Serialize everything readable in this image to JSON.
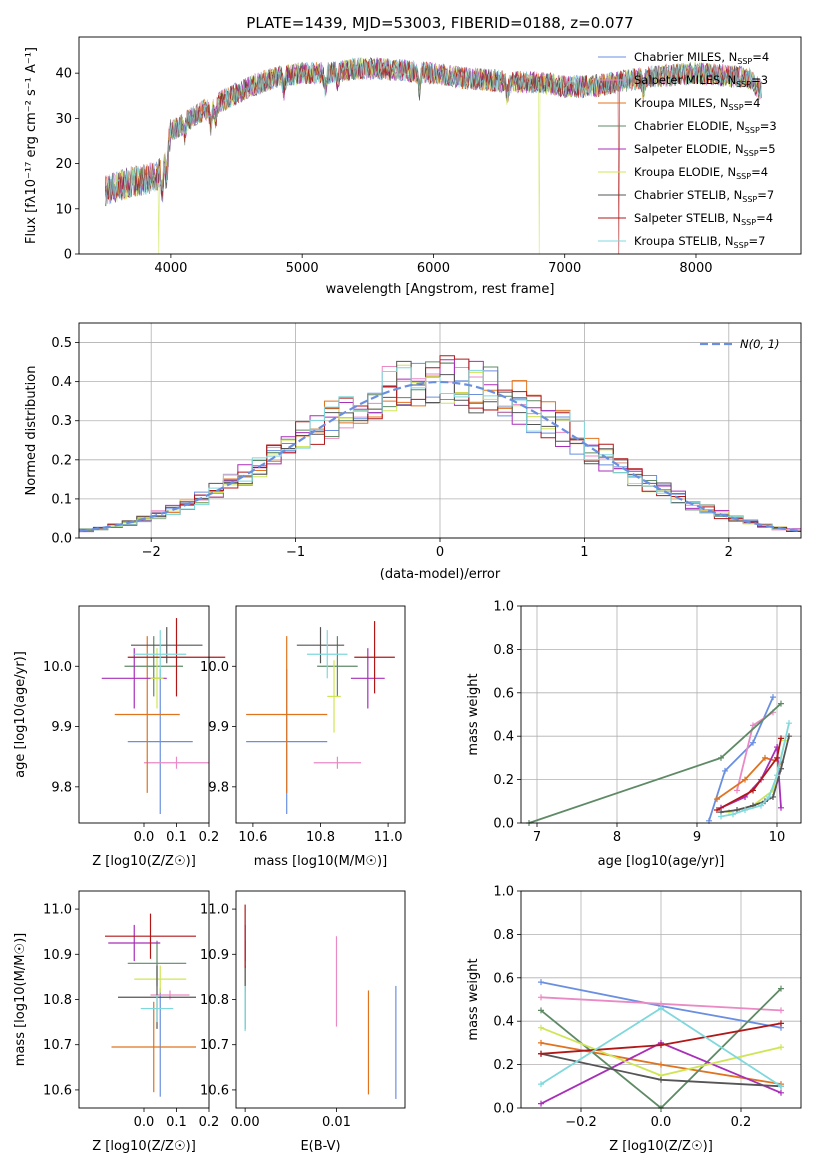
{
  "figure_title": "PLATE=1439, MJD=53003, FIBERID=0188, z=0.077",
  "colors": {
    "Chabrier MILES": "#6a8fe0",
    "Salpeter MILES": "#e98ac4",
    "Kroupa MILES": "#e0731e",
    "Chabrier ELODIE": "#5f8a66",
    "Salpeter ELODIE": "#a82fb8",
    "Kroupa ELODIE": "#cfe556",
    "Chabrier STELIB": "#555555",
    "Salpeter STELIB": "#b01818",
    "Kroupa STELIB": "#7fd8dc"
  },
  "chart_data": [
    {
      "id": "spectrum",
      "type": "line",
      "title": "PLATE=1439, MJD=53003, FIBERID=0188, z=0.077",
      "xlabel": "wavelength [Angstrom, rest frame]",
      "ylabel": "Flux [fλ10⁻¹⁷ erg cm⁻² s⁻¹ A⁻¹]",
      "xlim": [
        3300,
        8800
      ],
      "ylim": [
        0,
        48
      ],
      "xticks": [
        4000,
        5000,
        6000,
        7000,
        8000
      ],
      "yticks": [
        0,
        10,
        20,
        30,
        40
      ],
      "grid": false,
      "legend": "top-right",
      "series": [
        {
          "name": "Chabrier MILES, N_SSP=4"
        },
        {
          "name": "Salpeter MILES, N_SSP=3"
        },
        {
          "name": "Kroupa MILES, N_SSP=4"
        },
        {
          "name": "Chabrier ELODIE, N_SSP=3"
        },
        {
          "name": "Salpeter ELODIE, N_SSP=5"
        },
        {
          "name": "Kroupa ELODIE, N_SSP=4"
        },
        {
          "name": "Chabrier STELIB, N_SSP=7"
        },
        {
          "name": "Salpeter STELIB, N_SSP=4"
        },
        {
          "name": "Kroupa STELIB, N_SSP=7"
        }
      ],
      "continuum": {
        "x": [
          3500,
          3700,
          3900,
          3950,
          4000,
          4200,
          4400,
          4600,
          4800,
          5000,
          5200,
          5400,
          5600,
          5800,
          6000,
          6200,
          6400,
          6600,
          6800,
          7000,
          7200,
          7400,
          7600,
          8000,
          8400,
          8500
        ],
        "y": [
          14,
          16,
          17,
          21,
          27,
          31,
          34,
          37,
          39,
          40,
          40,
          41,
          41,
          40.5,
          40,
          39,
          38.5,
          38,
          38,
          37,
          37,
          38,
          39,
          40,
          39,
          36
        ]
      },
      "drops": [
        {
          "series": "Kroupa ELODIE",
          "x": 3910
        },
        {
          "series": "Kroupa ELODIE",
          "x": 6805
        },
        {
          "series": "Salpeter STELIB",
          "x": 7410
        }
      ]
    },
    {
      "id": "residuals",
      "type": "line",
      "xlabel": "(data-model)/error",
      "ylabel": "Normed distribution",
      "xlim": [
        -2.5,
        2.5
      ],
      "ylim": [
        0,
        0.55
      ],
      "xticks": [
        -2,
        -1,
        0,
        1,
        2
      ],
      "yticks": [
        0.0,
        0.1,
        0.2,
        0.3,
        0.4,
        0.5
      ],
      "grid": true,
      "legend": "top-right",
      "reference_label": "N(0, 1)",
      "reference_color": "#6a8fe0"
    },
    {
      "id": "age_vs_Z",
      "type": "scatter",
      "xlabel": "Z [log10(Z/Z☉)]",
      "ylabel": "age  [log10(age/yr)]",
      "xlim": [
        -0.2,
        0.2
      ],
      "ylim": [
        9.74,
        10.1
      ],
      "xticks": [
        0.0,
        0.1,
        0.2
      ],
      "yticks": [
        9.8,
        9.9,
        10.0
      ],
      "points": [
        {
          "series": "Chabrier MILES",
          "x": 0.05,
          "y": 9.875,
          "xerr": 0.1,
          "yerr": 0.12
        },
        {
          "series": "Salpeter MILES",
          "x": 0.1,
          "y": 9.84,
          "xerr": 0.1,
          "yerr": 0.01
        },
        {
          "series": "Kroupa MILES",
          "x": 0.01,
          "y": 9.92,
          "xerr": 0.1,
          "yerr": 0.13
        },
        {
          "series": "Chabrier ELODIE",
          "x": 0.03,
          "y": 10.0,
          "xerr": 0.09,
          "yerr": 0.05
        },
        {
          "series": "Salpeter ELODIE",
          "x": -0.03,
          "y": 9.98,
          "xerr": 0.1,
          "yerr": 0.05
        },
        {
          "series": "Kroupa ELODIE",
          "x": 0.04,
          "y": 9.98,
          "xerr": 0.02,
          "yerr": 0.05
        },
        {
          "series": "Chabrier STELIB",
          "x": 0.07,
          "y": 10.035,
          "xerr": 0.11,
          "yerr": 0.03
        },
        {
          "series": "Salpeter STELIB",
          "x": 0.1,
          "y": 10.015,
          "xerr": 0.15,
          "yerr": 0.065
        },
        {
          "series": "Kroupa STELIB",
          "x": 0.05,
          "y": 10.02,
          "xerr": 0.08,
          "yerr": 0.04
        }
      ]
    },
    {
      "id": "age_vs_mass",
      "type": "scatter",
      "xlabel": "mass [log10(M/M☉)]",
      "ylabel": "",
      "xlim": [
        10.55,
        11.05
      ],
      "ylim": [
        9.74,
        10.1
      ],
      "xticks": [
        10.6,
        10.8,
        11.0
      ],
      "yticks": [
        9.8,
        9.9,
        10.0
      ],
      "points": [
        {
          "series": "Chabrier MILES",
          "x": 10.7,
          "y": 9.875,
          "xerr": 0.12,
          "yerr": 0.12
        },
        {
          "series": "Salpeter MILES",
          "x": 10.85,
          "y": 9.84,
          "xerr": 0.07,
          "yerr": 0.01
        },
        {
          "series": "Kroupa MILES",
          "x": 10.7,
          "y": 9.92,
          "xerr": 0.12,
          "yerr": 0.13
        },
        {
          "series": "Chabrier ELODIE",
          "x": 10.85,
          "y": 10.0,
          "xerr": 0.06,
          "yerr": 0.05
        },
        {
          "series": "Salpeter ELODIE",
          "x": 10.94,
          "y": 9.98,
          "xerr": 0.05,
          "yerr": 0.05
        },
        {
          "series": "Kroupa ELODIE",
          "x": 10.84,
          "y": 9.95,
          "xerr": 0.02,
          "yerr": 0.06
        },
        {
          "series": "Chabrier STELIB",
          "x": 10.8,
          "y": 10.035,
          "xerr": 0.07,
          "yerr": 0.03
        },
        {
          "series": "Salpeter STELIB",
          "x": 10.96,
          "y": 10.015,
          "xerr": 0.06,
          "yerr": 0.06
        },
        {
          "series": "Kroupa STELIB",
          "x": 10.82,
          "y": 10.02,
          "xerr": 0.06,
          "yerr": 0.04
        }
      ]
    },
    {
      "id": "weight_vs_age",
      "type": "line",
      "xlabel": "age  [log10(age/yr)]",
      "ylabel": "mass weight",
      "xlim": [
        6.8,
        10.3
      ],
      "ylim": [
        0,
        1.0
      ],
      "xticks": [
        7,
        8,
        9,
        10
      ],
      "yticks": [
        0.0,
        0.2,
        0.4,
        0.6,
        0.8,
        1.0
      ],
      "grid": true,
      "series": [
        {
          "name": "Chabrier MILES",
          "x": [
            9.15,
            9.35,
            9.7,
            9.95
          ],
          "y": [
            0.01,
            0.24,
            0.37,
            0.58
          ]
        },
        {
          "name": "Salpeter MILES",
          "x": [
            9.5,
            9.7,
            9.95
          ],
          "y": [
            0.15,
            0.45,
            0.51
          ]
        },
        {
          "name": "Kroupa MILES",
          "x": [
            9.25,
            9.6,
            9.85,
            10.05
          ],
          "y": [
            0.11,
            0.2,
            0.3,
            0.28
          ]
        },
        {
          "name": "Chabrier ELODIE",
          "x": [
            6.9,
            9.3,
            10.05
          ],
          "y": [
            0.0,
            0.3,
            0.55
          ]
        },
        {
          "name": "Salpeter ELODIE",
          "x": [
            9.3,
            9.6,
            9.8,
            10.0,
            10.05
          ],
          "y": [
            0.07,
            0.12,
            0.2,
            0.35,
            0.07
          ]
        },
        {
          "name": "Kroupa ELODIE",
          "x": [
            9.4,
            9.7,
            9.95,
            10.1
          ],
          "y": [
            0.05,
            0.08,
            0.15,
            0.38
          ]
        },
        {
          "name": "Chabrier STELIB",
          "x": [
            9.3,
            9.5,
            9.7,
            9.85,
            9.95,
            10.05,
            10.15
          ],
          "y": [
            0.05,
            0.06,
            0.08,
            0.1,
            0.12,
            0.25,
            0.4
          ]
        },
        {
          "name": "Salpeter STELIB",
          "x": [
            9.25,
            9.7,
            10.0,
            10.05
          ],
          "y": [
            0.06,
            0.15,
            0.3,
            0.39
          ]
        },
        {
          "name": "Kroupa STELIB",
          "x": [
            9.3,
            9.45,
            9.6,
            9.8,
            9.9,
            10.0,
            10.15
          ],
          "y": [
            0.03,
            0.04,
            0.06,
            0.08,
            0.12,
            0.22,
            0.46
          ]
        }
      ]
    },
    {
      "id": "mass_vs_Z",
      "type": "scatter",
      "xlabel": "Z [log10(Z/Z☉)]",
      "ylabel": "mass [log10(M/M☉)]",
      "xlim": [
        -0.2,
        0.2
      ],
      "ylim": [
        10.56,
        11.04
      ],
      "xticks": [
        0.0,
        0.1,
        0.2
      ],
      "yticks": [
        10.6,
        10.7,
        10.8,
        10.9,
        11.0
      ],
      "points": [
        {
          "series": "Chabrier MILES",
          "x": 0.05,
          "y": 10.705,
          "xerr": 0.0,
          "yerr": 0.12
        },
        {
          "series": "Salpeter MILES",
          "x": 0.08,
          "y": 10.81,
          "xerr": 0.06,
          "yerr": 0.01
        },
        {
          "series": "Kroupa MILES",
          "x": 0.03,
          "y": 10.695,
          "xerr": 0.13,
          "yerr": 0.1
        },
        {
          "series": "Chabrier ELODIE",
          "x": 0.04,
          "y": 10.88,
          "xerr": 0.09,
          "yerr": 0.05
        },
        {
          "series": "Salpeter ELODIE",
          "x": -0.03,
          "y": 10.925,
          "xerr": 0.08,
          "yerr": 0.04
        },
        {
          "series": "Kroupa ELODIE",
          "x": 0.05,
          "y": 10.845,
          "xerr": 0.08,
          "yerr": 0.03
        },
        {
          "series": "Chabrier STELIB",
          "x": 0.04,
          "y": 10.805,
          "xerr": 0.12,
          "yerr": 0.07
        },
        {
          "series": "Salpeter STELIB",
          "x": 0.02,
          "y": 10.94,
          "xerr": 0.14,
          "yerr": 0.05
        },
        {
          "series": "Kroupa STELIB",
          "x": 0.04,
          "y": 10.78,
          "xerr": 0.05,
          "yerr": 0.03
        }
      ]
    },
    {
      "id": "mass_vs_ebv",
      "type": "scatter",
      "xlabel": "E(B-V)",
      "ylabel": "",
      "xlim": [
        -0.001,
        0.0175
      ],
      "ylim": [
        10.56,
        11.04
      ],
      "xticks": [
        0.0,
        0.01
      ],
      "xticklabels": [
        "0.00",
        "0.01"
      ],
      "yticks": [
        10.6,
        10.7,
        10.8,
        10.9,
        11.0
      ],
      "points": [
        {
          "series": "Chabrier MILES",
          "x": 0.0165,
          "y": 10.705,
          "yerr": 0.125
        },
        {
          "series": "Salpeter MILES",
          "x": 0.01,
          "y": 10.84,
          "yerr": 0.1
        },
        {
          "series": "Kroupa MILES",
          "x": 0.0135,
          "y": 10.705,
          "yerr": 0.115
        },
        {
          "series": "Chabrier ELODIE",
          "x": 0.0,
          "y": 10.88,
          "yerr": 0.05
        },
        {
          "series": "Salpeter ELODIE",
          "x": 0.0,
          "y": 10.925,
          "yerr": 0.04
        },
        {
          "series": "Kroupa ELODIE",
          "x": 0.0,
          "y": 10.845,
          "yerr": 0.03
        },
        {
          "series": "Chabrier STELIB",
          "x": 0.0,
          "y": 10.805,
          "yerr": 0.07
        },
        {
          "series": "Salpeter STELIB",
          "x": 0.0,
          "y": 10.94,
          "yerr": 0.07
        },
        {
          "series": "Kroupa STELIB",
          "x": 0.0,
          "y": 10.78,
          "yerr": 0.05
        }
      ]
    },
    {
      "id": "weight_vs_Z",
      "type": "line",
      "xlabel": "Z [log10(Z/Z☉)]",
      "ylabel": "mass weight",
      "xlim": [
        -0.35,
        0.35
      ],
      "ylim": [
        0,
        1.0
      ],
      "xticks": [
        -0.2,
        0.0,
        0.2
      ],
      "xticklabels": [
        "−0.2",
        "0.0",
        "0.2"
      ],
      "yticks": [
        0.0,
        0.2,
        0.4,
        0.6,
        0.8,
        1.0
      ],
      "grid": true,
      "series": [
        {
          "name": "Chabrier MILES",
          "x": [
            -0.3,
            0.0,
            0.3
          ],
          "y": [
            0.58,
            0.47,
            0.37
          ]
        },
        {
          "name": "Salpeter MILES",
          "x": [
            -0.3,
            0.0,
            0.3
          ],
          "y": [
            0.51,
            0.48,
            0.45
          ]
        },
        {
          "name": "Kroupa MILES",
          "x": [
            -0.3,
            0.0,
            0.3
          ],
          "y": [
            0.3,
            0.2,
            0.11
          ]
        },
        {
          "name": "Chabrier ELODIE",
          "x": [
            -0.3,
            0.0,
            0.3
          ],
          "y": [
            0.45,
            0.0,
            0.55
          ]
        },
        {
          "name": "Salpeter ELODIE",
          "x": [
            -0.3,
            0.0,
            0.3
          ],
          "y": [
            0.02,
            0.3,
            0.07
          ]
        },
        {
          "name": "Kroupa ELODIE",
          "x": [
            -0.3,
            0.0,
            0.3
          ],
          "y": [
            0.37,
            0.15,
            0.28
          ]
        },
        {
          "name": "Chabrier STELIB",
          "x": [
            -0.3,
            0.0,
            0.3
          ],
          "y": [
            0.25,
            0.13,
            0.1
          ]
        },
        {
          "name": "Salpeter STELIB",
          "x": [
            -0.3,
            0.0,
            0.3
          ],
          "y": [
            0.25,
            0.29,
            0.39
          ]
        },
        {
          "name": "Kroupa STELIB",
          "x": [
            -0.3,
            0.0,
            0.3
          ],
          "y": [
            0.11,
            0.46,
            0.1
          ]
        }
      ]
    }
  ]
}
